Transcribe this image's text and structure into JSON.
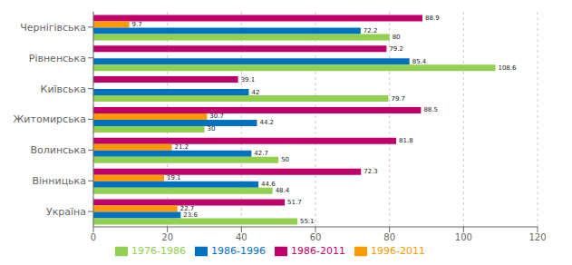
{
  "chart_data": {
    "type": "bar",
    "orientation": "horizontal",
    "categories": [
      "Україна",
      "Вінницька",
      "Волинська",
      "Житомирська",
      "Київська",
      "Рівненська",
      "Чернігівська"
    ],
    "series": [
      {
        "name": "1986-2011",
        "color": "#C0006A",
        "values": [
          51.7,
          72.3,
          81.8,
          88.5,
          39.1,
          79.2,
          88.9
        ],
        "value_labels": [
          "51.7",
          "72.3",
          "81.8",
          "88.5",
          "39.1",
          "79.2",
          "88.9"
        ]
      },
      {
        "name": "1996-2011",
        "color": "#FF9900",
        "values": [
          22.7,
          19.1,
          21.2,
          30.7,
          0.0,
          0.0,
          9.7
        ],
        "value_labels": [
          "22.7",
          "19.1",
          "21.2",
          "30.7",
          null,
          null,
          "9.7"
        ]
      },
      {
        "name": "1986-1996",
        "color": "#0070C0",
        "values": [
          23.6,
          44.6,
          42.7,
          44.2,
          42.0,
          85.4,
          72.2
        ],
        "value_labels": [
          "23.6",
          "44.6",
          "42.7",
          "44.2",
          "42",
          "85.4",
          "72.2"
        ]
      },
      {
        "name": "1976-1986",
        "color": "#92D050",
        "values": [
          55.1,
          48.4,
          50.0,
          30.0,
          79.7,
          108.6,
          80.0
        ],
        "value_labels": [
          "55.1",
          "48.4",
          "50",
          "30",
          "79.7",
          "108.6",
          "80"
        ]
      }
    ],
    "xlim": [
      0,
      120
    ],
    "xticks": [
      0,
      20,
      40,
      60,
      80,
      100,
      120
    ],
    "grid": true,
    "legend": "bottom",
    "data_labels": true
  }
}
